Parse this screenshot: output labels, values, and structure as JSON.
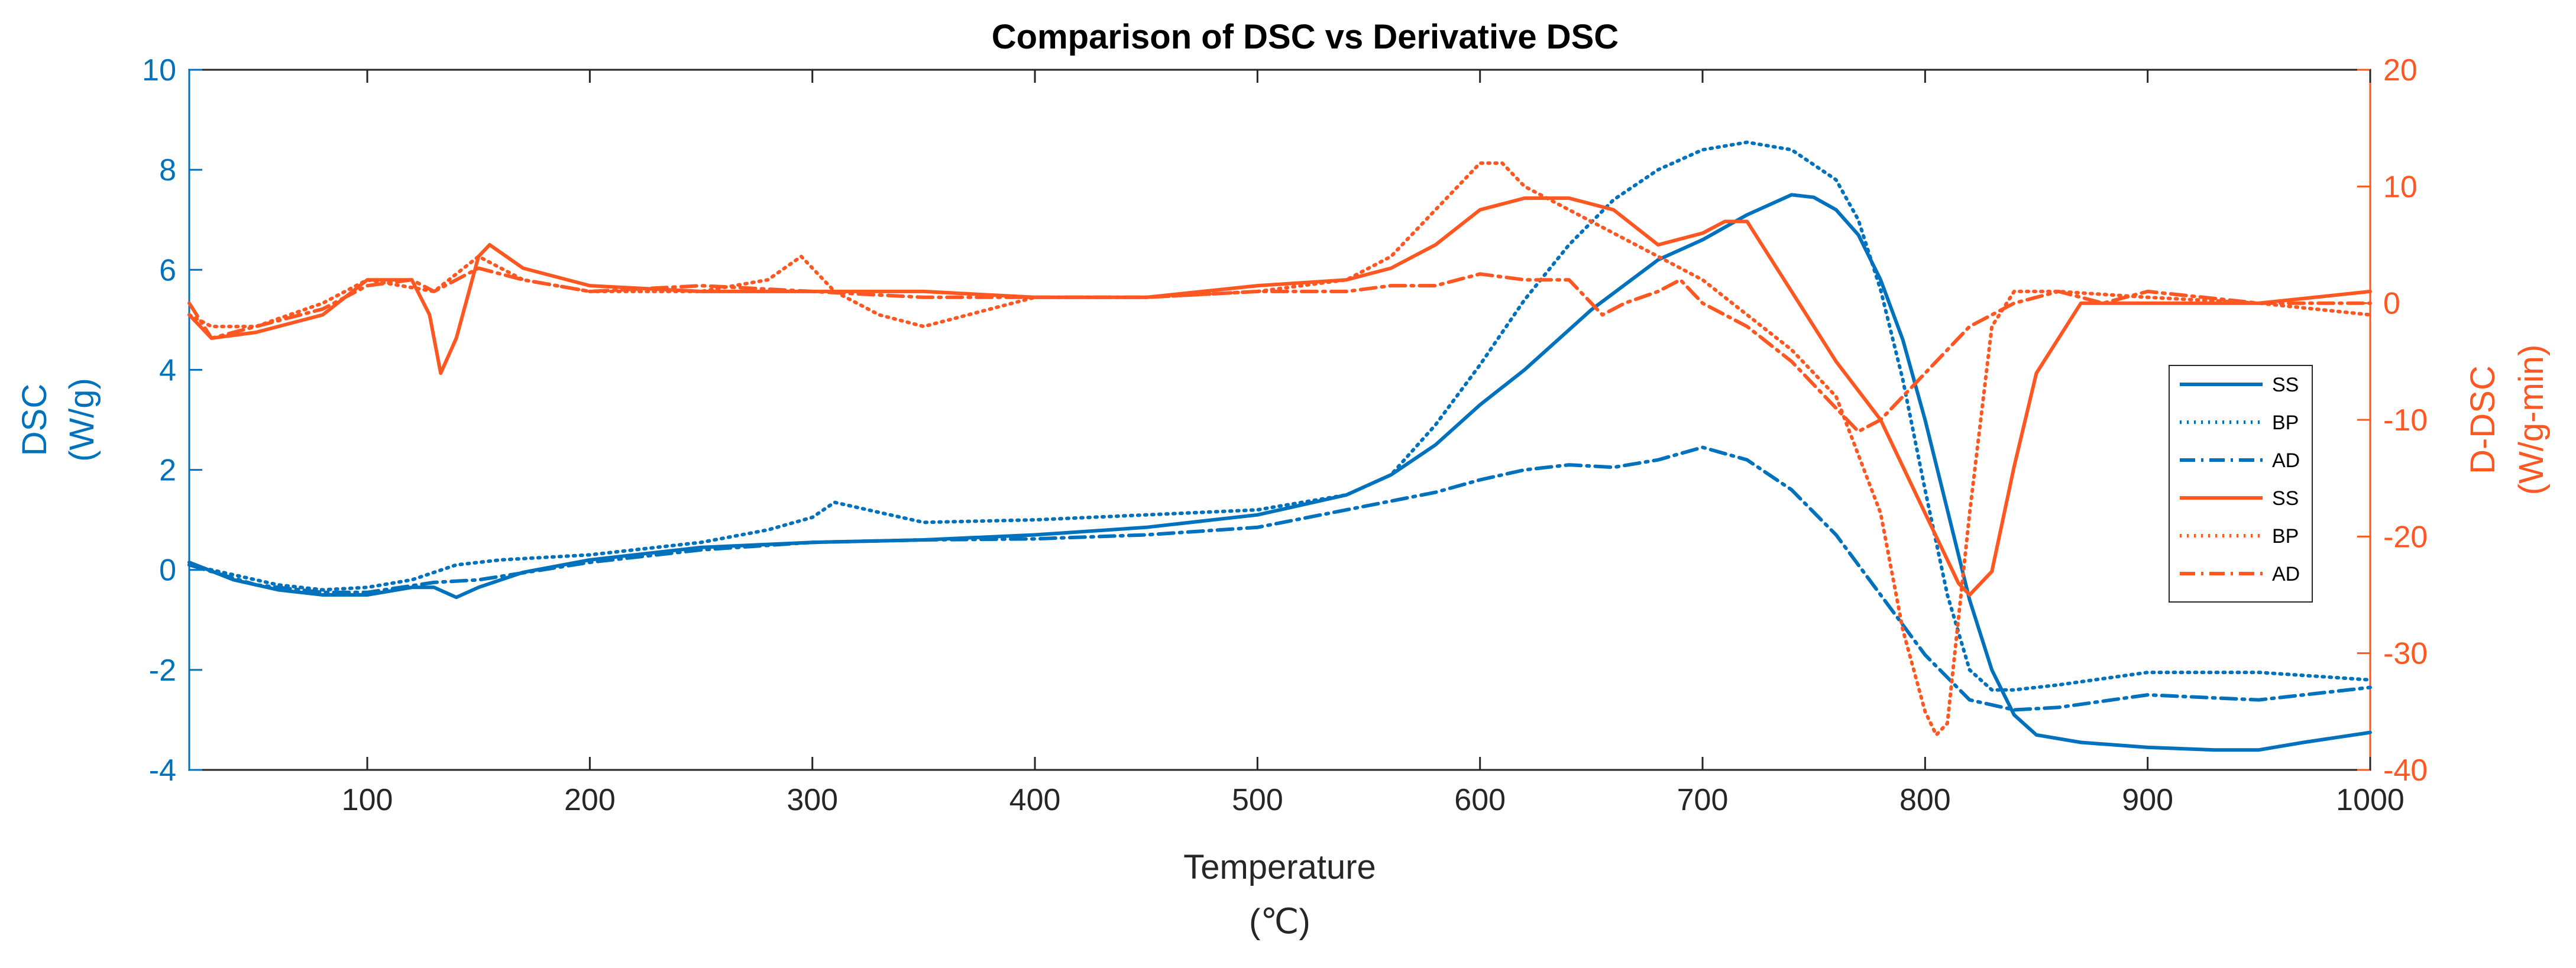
{
  "chart_data": {
    "type": "line",
    "title": "Comparison of DSC vs Derivative DSC",
    "xlabel": "Temperature",
    "xunit": "(℃)",
    "ylabel_left": "DSC",
    "yunit_left": "(W/g)",
    "ylabel_right": "D-DSC",
    "yunit_right": "(W/g-min)",
    "xlim": [
      20,
      1000
    ],
    "ylim_left": [
      -4,
      10
    ],
    "ylim_right": [
      -40,
      20
    ],
    "xticks": [
      "100",
      "200",
      "300",
      "400",
      "500",
      "600",
      "700",
      "800",
      "900",
      "1000"
    ],
    "yticks_left": [
      "-4",
      "-2",
      "0",
      "2",
      "4",
      "6",
      "8",
      "10"
    ],
    "yticks_right": [
      "-40",
      "-30",
      "-20",
      "-10",
      "0",
      "10",
      "20"
    ],
    "legend_position": "right",
    "colors": {
      "dsc": "#0072BD",
      "ddsc": "#FF5722",
      "axis": "#262626"
    },
    "series": [
      {
        "name": "SS",
        "axis": "left",
        "style": "solid",
        "x": [
          20,
          40,
          60,
          80,
          100,
          120,
          130,
          140,
          150,
          170,
          200,
          250,
          300,
          350,
          400,
          450,
          500,
          540,
          560,
          580,
          600,
          620,
          650,
          680,
          700,
          720,
          740,
          750,
          760,
          770,
          780,
          790,
          800,
          810,
          820,
          830,
          840,
          850,
          870,
          900,
          930,
          950,
          970,
          1000
        ],
        "y": [
          0.15,
          -0.2,
          -0.4,
          -0.5,
          -0.5,
          -0.35,
          -0.35,
          -0.55,
          -0.35,
          -0.05,
          0.2,
          0.45,
          0.55,
          0.6,
          0.7,
          0.85,
          1.1,
          1.5,
          1.9,
          2.5,
          3.3,
          4.0,
          5.2,
          6.2,
          6.6,
          7.1,
          7.5,
          7.45,
          7.2,
          6.7,
          5.8,
          4.6,
          3.0,
          1.2,
          -0.6,
          -2.0,
          -2.9,
          -3.3,
          -3.45,
          -3.55,
          -3.6,
          -3.6,
          -3.45,
          -3.25
        ]
      },
      {
        "name": "BP",
        "axis": "left",
        "style": "dotted",
        "x": [
          20,
          40,
          60,
          80,
          100,
          120,
          140,
          160,
          200,
          250,
          280,
          300,
          310,
          330,
          350,
          400,
          450,
          500,
          540,
          560,
          580,
          600,
          620,
          640,
          660,
          680,
          700,
          720,
          740,
          760,
          770,
          780,
          790,
          800,
          810,
          820,
          830,
          840,
          860,
          900,
          950,
          1000
        ],
        "y": [
          0.1,
          -0.1,
          -0.3,
          -0.4,
          -0.35,
          -0.2,
          0.1,
          0.2,
          0.3,
          0.55,
          0.8,
          1.05,
          1.35,
          1.15,
          0.95,
          1.0,
          1.1,
          1.2,
          1.5,
          1.9,
          2.9,
          4.1,
          5.4,
          6.5,
          7.4,
          8.0,
          8.4,
          8.55,
          8.4,
          7.8,
          7.0,
          5.6,
          3.8,
          1.6,
          -0.5,
          -2.0,
          -2.4,
          -2.4,
          -2.3,
          -2.05,
          -2.05,
          -2.2
        ]
      },
      {
        "name": "AD",
        "axis": "left",
        "style": "dashdot",
        "x": [
          20,
          50,
          80,
          100,
          130,
          150,
          200,
          250,
          300,
          350,
          400,
          450,
          500,
          540,
          580,
          600,
          620,
          640,
          660,
          680,
          700,
          720,
          740,
          760,
          780,
          800,
          820,
          840,
          860,
          900,
          950,
          1000
        ],
        "y": [
          0.1,
          -0.3,
          -0.45,
          -0.45,
          -0.25,
          -0.2,
          0.15,
          0.4,
          0.55,
          0.6,
          0.62,
          0.7,
          0.85,
          1.2,
          1.55,
          1.8,
          2.0,
          2.1,
          2.05,
          2.2,
          2.45,
          2.2,
          1.6,
          0.7,
          -0.5,
          -1.7,
          -2.6,
          -2.8,
          -2.75,
          -2.5,
          -2.6,
          -2.35
        ]
      },
      {
        "name": "SS",
        "axis": "right",
        "style": "solid",
        "x": [
          20,
          30,
          50,
          80,
          100,
          120,
          128,
          133,
          140,
          150,
          155,
          170,
          200,
          250,
          300,
          350,
          400,
          450,
          500,
          540,
          560,
          580,
          600,
          620,
          640,
          660,
          680,
          700,
          710,
          720,
          730,
          740,
          760,
          780,
          800,
          815,
          820,
          830,
          840,
          850,
          870,
          900,
          950,
          1000
        ],
        "y": [
          -1,
          -3,
          -2.5,
          -1,
          2,
          2,
          -1,
          -6,
          -3,
          4,
          5,
          3,
          1.5,
          1,
          1,
          1,
          0.5,
          0.5,
          1.5,
          2,
          3,
          5,
          8,
          9,
          9,
          8,
          5,
          6,
          7,
          7,
          4,
          1,
          -5,
          -10,
          -18,
          -24,
          -25,
          -23,
          -14,
          -6,
          0,
          0,
          0,
          1
        ]
      },
      {
        "name": "BP",
        "axis": "right",
        "style": "dotted",
        "x": [
          20,
          30,
          50,
          80,
          100,
          130,
          150,
          170,
          200,
          250,
          280,
          295,
          310,
          330,
          350,
          400,
          450,
          500,
          540,
          560,
          580,
          600,
          610,
          620,
          640,
          660,
          680,
          700,
          720,
          740,
          760,
          780,
          790,
          800,
          805,
          810,
          820,
          830,
          840,
          860,
          900,
          950,
          1000
        ],
        "y": [
          -1,
          -2,
          -2,
          0,
          2,
          1,
          4,
          2,
          1,
          1,
          2,
          4,
          1,
          -1,
          -2,
          0.5,
          0.5,
          1,
          2,
          4,
          8,
          12,
          12,
          10,
          8,
          6,
          4,
          2,
          -1,
          -4,
          -8,
          -18,
          -28,
          -35,
          -37,
          -36,
          -18,
          -2,
          1,
          1,
          0.5,
          0,
          -1
        ]
      },
      {
        "name": "AD",
        "axis": "right",
        "style": "dashdot",
        "x": [
          20,
          30,
          50,
          80,
          100,
          120,
          130,
          150,
          170,
          200,
          250,
          300,
          350,
          400,
          450,
          500,
          540,
          560,
          580,
          600,
          620,
          640,
          655,
          665,
          680,
          690,
          700,
          720,
          740,
          760,
          770,
          780,
          800,
          820,
          840,
          860,
          880,
          900,
          950,
          1000
        ],
        "y": [
          0,
          -3,
          -2,
          -0.5,
          1.5,
          2,
          1,
          3,
          2,
          1,
          1.5,
          1,
          0.5,
          0.5,
          0.5,
          1,
          1,
          1.5,
          1.5,
          2.5,
          2,
          2,
          -1,
          0,
          1,
          2,
          0,
          -2,
          -5,
          -9,
          -11,
          -10,
          -6,
          -2,
          0,
          1,
          0,
          1,
          0,
          0
        ]
      }
    ]
  }
}
